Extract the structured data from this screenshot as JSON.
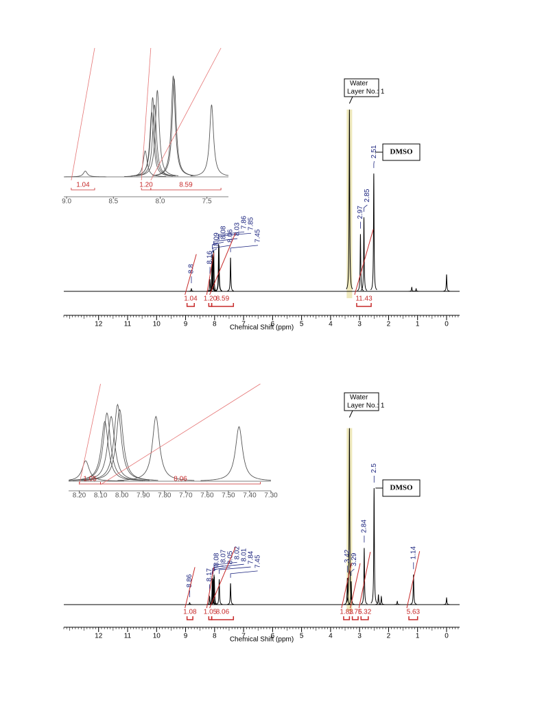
{
  "chart_data": [
    {
      "type": "nmr",
      "x_label": "Chemical Shift (ppm)",
      "xlim": [
        13.2,
        -0.45
      ],
      "xticks": [
        12,
        11,
        10,
        9,
        8,
        7,
        6,
        5,
        4,
        3,
        2,
        1,
        0
      ],
      "ylim": [
        0,
        280
      ],
      "labeled_peaks": {
        "x": [
          8.8,
          8.16,
          8.09,
          8.08,
          8.06,
          8.03,
          7.86,
          7.85,
          7.45,
          2.97,
          2.85,
          2.51
        ],
        "values": [
          4,
          18,
          45,
          55,
          50,
          60,
          70,
          68,
          50,
          85,
          110,
          175
        ]
      },
      "other_peaks": {
        "x": [
          3.35,
          0.0,
          1.2,
          1.05
        ],
        "values": [
          270,
          25,
          6,
          4
        ]
      },
      "integrals": {
        "values": [
          1.04,
          1.2,
          8.59,
          11.43
        ],
        "value_labels": [
          "1.04",
          "1.20",
          "8.59",
          "11.43"
        ],
        "ranges": [
          [
            8.95,
            8.7
          ],
          [
            8.2,
            8.1
          ],
          [
            8.1,
            7.35
          ],
          [
            3.1,
            2.6
          ]
        ]
      },
      "annotations": [
        "Water",
        "Layer No.: 1",
        "DMSO"
      ],
      "inset": {
        "xlim": [
          9.03,
          7.27
        ],
        "ylim": [
          0,
          75
        ],
        "xticks": [
          {
            "value": 9,
            "label": "9.0"
          },
          {
            "value": 8.5,
            "label": "8.5"
          },
          {
            "value": 8,
            "label": "8.0"
          },
          {
            "value": 7.5,
            "label": "7.5"
          }
        ]
      }
    },
    {
      "type": "nmr",
      "x_label": "Chemical Shift (ppm)",
      "xlim": [
        13.2,
        -0.45
      ],
      "xticks": [
        12,
        11,
        10,
        9,
        8,
        7,
        6,
        5,
        4,
        3,
        2,
        1,
        0
      ],
      "ylim": [
        0,
        280
      ],
      "labeled_peaks": {
        "x": [
          8.86,
          8.17,
          8.08,
          8.07,
          8.05,
          8.02,
          8.01,
          7.84,
          7.45,
          3.42,
          3.29,
          2.84,
          2.5,
          1.14
        ],
        "values": [
          3,
          12,
          35,
          40,
          38,
          45,
          42,
          38,
          32,
          40,
          35,
          85,
          175,
          45
        ]
      },
      "other_peaks": {
        "x": [
          3.35,
          0.0,
          2.35,
          2.25,
          1.7
        ],
        "values": [
          265,
          10,
          15,
          12,
          5
        ]
      },
      "integrals": {
        "values": [
          1.08,
          1.05,
          8.06,
          1.83,
          1.76,
          5.32,
          5.63
        ],
        "value_labels": [
          "1.08",
          "1.05",
          "8.06",
          "1.83",
          "1.76",
          "5.32",
          "5.63"
        ],
        "ranges": [
          [
            8.95,
            8.75
          ],
          [
            8.2,
            8.1
          ],
          [
            8.1,
            7.35
          ],
          [
            3.55,
            3.35
          ],
          [
            3.25,
            3.05
          ],
          [
            2.95,
            2.7
          ],
          [
            1.3,
            1.0
          ]
        ]
      },
      "annotations": [
        "Water",
        "Layer No.: 1",
        "DMSO"
      ],
      "inset": {
        "xlim": [
          8.25,
          7.3
        ],
        "ylim": [
          0,
          45
        ],
        "xticks": [
          {
            "value": 8.2,
            "label": "8.20"
          },
          {
            "value": 8.1,
            "label": "8.10"
          },
          {
            "value": 8.0,
            "label": "8.00"
          },
          {
            "value": 7.9,
            "label": "7.90"
          },
          {
            "value": 7.8,
            "label": "7.80"
          },
          {
            "value": 7.7,
            "label": "7.70"
          },
          {
            "value": 7.6,
            "label": "7.60"
          },
          {
            "value": 7.5,
            "label": "7.50"
          },
          {
            "value": 7.4,
            "label": "7.40"
          },
          {
            "value": 7.3,
            "label": "7.30"
          }
        ]
      }
    }
  ]
}
